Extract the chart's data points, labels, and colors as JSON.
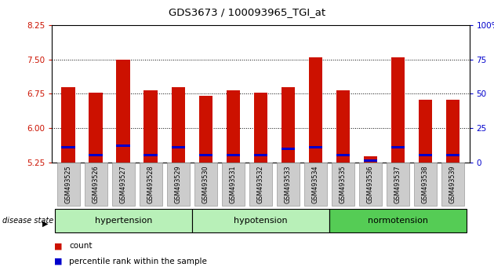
{
  "title": "GDS3673 / 100093965_TGI_at",
  "samples": [
    "GSM493525",
    "GSM493526",
    "GSM493527",
    "GSM493528",
    "GSM493529",
    "GSM493530",
    "GSM493531",
    "GSM493532",
    "GSM493533",
    "GSM493534",
    "GSM493535",
    "GSM493536",
    "GSM493537",
    "GSM493538",
    "GSM493539"
  ],
  "red_values": [
    6.9,
    6.78,
    7.5,
    6.82,
    6.9,
    6.7,
    6.82,
    6.78,
    6.9,
    7.55,
    6.82,
    5.38,
    7.55,
    6.62,
    6.62
  ],
  "blue_values": [
    5.58,
    5.42,
    5.62,
    5.42,
    5.58,
    5.42,
    5.42,
    5.42,
    5.55,
    5.58,
    5.42,
    5.3,
    5.58,
    5.42,
    5.42
  ],
  "y_min": 5.25,
  "y_max": 8.25,
  "y_ticks_left": [
    5.25,
    6.0,
    6.75,
    7.5,
    8.25
  ],
  "y_ticks_right": [
    0,
    25,
    50,
    75,
    100
  ],
  "group_positions": [
    {
      "label": "hypertension",
      "start": 0,
      "end": 4,
      "color": "#b8f0b8"
    },
    {
      "label": "hypotension",
      "start": 5,
      "end": 9,
      "color": "#b8f0b8"
    },
    {
      "label": "normotension",
      "start": 10,
      "end": 14,
      "color": "#55cc55"
    }
  ],
  "bar_color": "#cc1100",
  "blue_color": "#0000cc",
  "bg_color": "#ffffff",
  "tick_color_left": "#cc1100",
  "tick_color_right": "#0000cc",
  "legend_items": [
    "count",
    "percentile rank within the sample"
  ],
  "legend_colors": [
    "#cc1100",
    "#0000cc"
  ],
  "disease_state_label": "disease state"
}
